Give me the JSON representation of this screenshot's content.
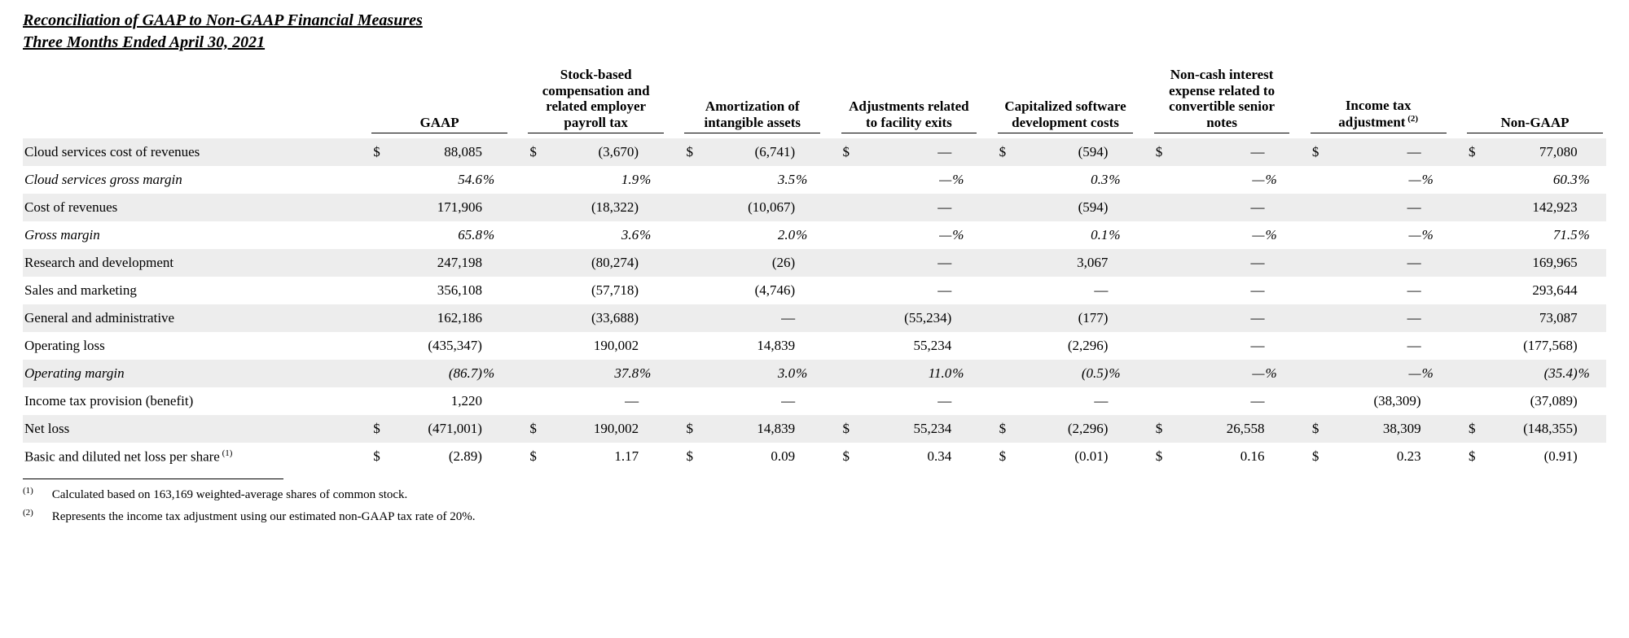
{
  "title": {
    "line1": "Reconciliation of GAAP to Non-GAAP Financial Measures",
    "line2": "Three Months Ended April 30, 2021"
  },
  "columns": [
    {
      "key": "gaap",
      "label": "GAAP"
    },
    {
      "key": "sbc",
      "label": "Stock-based compensation and related employer payroll tax"
    },
    {
      "key": "amort",
      "label": "Amortization of intangible assets"
    },
    {
      "key": "facility",
      "label": "Adjustments related to facility exits"
    },
    {
      "key": "capdev",
      "label": "Capitalized software development costs"
    },
    {
      "key": "noncash",
      "label": "Non-cash interest expense related to convertible senior notes"
    },
    {
      "key": "taxadj",
      "label": "Income tax adjustment",
      "sup": "(2)"
    },
    {
      "key": "nongaap",
      "label": "Non-GAAP"
    }
  ],
  "rows": [
    {
      "label": "Cloud services cost of revenues",
      "shaded": true,
      "show_currency": true,
      "cells": {
        "gaap": "88,085",
        "sbc": "(3,670)",
        "amort": "(6,741)",
        "facility": "—",
        "capdev": "(594)",
        "noncash": "—",
        "taxadj": "—",
        "nongaap": "77,080"
      }
    },
    {
      "label": "Cloud services gross margin",
      "italic": true,
      "percent": true,
      "cells": {
        "gaap": "54.6",
        "sbc": "1.9",
        "amort": "3.5",
        "facility": "—",
        "capdev": "0.3",
        "noncash": "—",
        "taxadj": "—",
        "nongaap": "60.3"
      }
    },
    {
      "label": "Cost of revenues",
      "shaded": true,
      "cells": {
        "gaap": "171,906",
        "sbc": "(18,322)",
        "amort": "(10,067)",
        "facility": "—",
        "capdev": "(594)",
        "noncash": "—",
        "taxadj": "—",
        "nongaap": "142,923"
      }
    },
    {
      "label": "Gross margin",
      "italic": true,
      "percent": true,
      "cells": {
        "gaap": "65.8",
        "sbc": "3.6",
        "amort": "2.0",
        "facility": "—",
        "capdev": "0.1",
        "noncash": "—",
        "taxadj": "—",
        "nongaap": "71.5"
      }
    },
    {
      "label": "Research and development",
      "shaded": true,
      "cells": {
        "gaap": "247,198",
        "sbc": "(80,274)",
        "amort": "(26)",
        "facility": "—",
        "capdev": "3,067",
        "noncash": "—",
        "taxadj": "—",
        "nongaap": "169,965"
      }
    },
    {
      "label": "Sales and marketing",
      "cells": {
        "gaap": "356,108",
        "sbc": "(57,718)",
        "amort": "(4,746)",
        "facility": "—",
        "capdev": "—",
        "noncash": "—",
        "taxadj": "—",
        "nongaap": "293,644"
      }
    },
    {
      "label": "General and administrative",
      "shaded": true,
      "cells": {
        "gaap": "162,186",
        "sbc": "(33,688)",
        "amort": "—",
        "facility": "(55,234)",
        "capdev": "(177)",
        "noncash": "—",
        "taxadj": "—",
        "nongaap": "73,087"
      }
    },
    {
      "label": "Operating loss",
      "cells": {
        "gaap": "(435,347)",
        "sbc": "190,002",
        "amort": "14,839",
        "facility": "55,234",
        "capdev": "(2,296)",
        "noncash": "—",
        "taxadj": "—",
        "nongaap": "(177,568)"
      }
    },
    {
      "label": "Operating margin",
      "shaded": true,
      "italic": true,
      "percent": true,
      "cells": {
        "gaap": "(86.7)",
        "sbc": "37.8",
        "amort": "3.0",
        "facility": "11.0",
        "capdev": "(0.5)",
        "noncash": "—",
        "taxadj": "—",
        "nongaap": "(35.4)"
      }
    },
    {
      "label": "Income tax provision (benefit)",
      "cells": {
        "gaap": "1,220",
        "sbc": "—",
        "amort": "—",
        "facility": "—",
        "capdev": "—",
        "noncash": "—",
        "taxadj": "(38,309)",
        "nongaap": "(37,089)"
      }
    },
    {
      "label": "Net loss",
      "shaded": true,
      "show_currency": true,
      "cells": {
        "gaap": "(471,001)",
        "sbc": "190,002",
        "amort": "14,839",
        "facility": "55,234",
        "capdev": "(2,296)",
        "noncash": "26,558",
        "taxadj": "38,309",
        "nongaap": "(148,355)"
      }
    },
    {
      "label": "Basic and diluted net loss per share",
      "sup": "(1)",
      "show_currency": true,
      "cells": {
        "gaap": "(2.89)",
        "sbc": "1.17",
        "amort": "0.09",
        "facility": "0.34",
        "capdev": "(0.01)",
        "noncash": "0.16",
        "taxadj": "0.23",
        "nongaap": "(0.91)"
      }
    }
  ],
  "footnotes": [
    {
      "sup": "(1)",
      "text": "Calculated based on 163,169 weighted-average shares of common stock."
    },
    {
      "sup": "(2)",
      "text": "Represents the income tax adjustment using our estimated non-GAAP tax rate of 20%."
    }
  ],
  "currency_symbol": "$",
  "percent_symbol": "%"
}
